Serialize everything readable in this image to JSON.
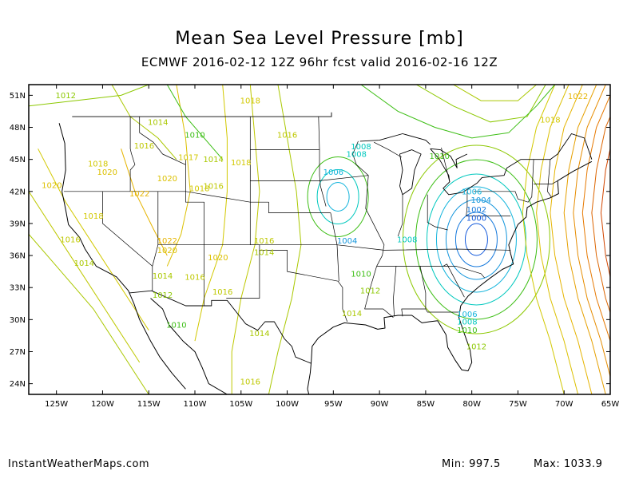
{
  "title": "Mean Sea Level Pressure [mb]",
  "subtitle": "ECMWF 2016-02-12 12Z 96hr fcst valid 2016-02-16 12Z",
  "footer": {
    "site": "InstantWeatherMaps.com",
    "min_text": "Min:  997.5",
    "max_text": "Max: 1033.9"
  },
  "map": {
    "lon_range": [
      -128,
      -65
    ],
    "lat_range": [
      23,
      52
    ],
    "lat_ticks": [
      {
        "value": 51,
        "label": "51N"
      },
      {
        "value": 48,
        "label": "48N"
      },
      {
        "value": 45,
        "label": "45N"
      },
      {
        "value": 42,
        "label": "42N"
      },
      {
        "value": 39,
        "label": "39N"
      },
      {
        "value": 36,
        "label": "36N"
      },
      {
        "value": 33,
        "label": "33N"
      },
      {
        "value": 30,
        "label": "30N"
      },
      {
        "value": 27,
        "label": "27N"
      },
      {
        "value": 24,
        "label": "24N"
      }
    ],
    "lon_ticks": [
      {
        "value": -125,
        "label": "125W"
      },
      {
        "value": -120,
        "label": "120W"
      },
      {
        "value": -115,
        "label": "115W"
      },
      {
        "value": -110,
        "label": "110W"
      },
      {
        "value": -105,
        "label": "105W"
      },
      {
        "value": -100,
        "label": "100W"
      },
      {
        "value": -95,
        "label": "95W"
      },
      {
        "value": -90,
        "label": "90W"
      },
      {
        "value": -85,
        "label": "85W"
      },
      {
        "value": -80,
        "label": "80W"
      },
      {
        "value": -75,
        "label": "75W"
      },
      {
        "value": -70,
        "label": "70W"
      },
      {
        "value": -65,
        "label": "65W"
      }
    ],
    "contour_labels": [
      {
        "text": "1012",
        "lon": -124,
        "lat": 51,
        "color": "#8cc800"
      },
      {
        "text": "1018",
        "lon": -104,
        "lat": 50.5,
        "color": "#d2c800"
      },
      {
        "text": "1022",
        "lon": -68.5,
        "lat": 50.9,
        "color": "#e6b400"
      },
      {
        "text": "1014",
        "lon": -114,
        "lat": 48.5,
        "color": "#aac800"
      },
      {
        "text": "1018",
        "lon": -71.5,
        "lat": 48.7,
        "color": "#d2c800"
      },
      {
        "text": "1010",
        "lon": -110,
        "lat": 47.3,
        "color": "#3cbe14"
      },
      {
        "text": "1016",
        "lon": -100,
        "lat": 47.3,
        "color": "#bec800"
      },
      {
        "text": "1016",
        "lon": -115.5,
        "lat": 46.3,
        "color": "#bec800"
      },
      {
        "text": "1008",
        "lon": -92,
        "lat": 46.2,
        "color": "#00c8be"
      },
      {
        "text": "1008",
        "lon": -92.5,
        "lat": 45.5,
        "color": "#00c8be"
      },
      {
        "text": "1010",
        "lon": -83.5,
        "lat": 45.3,
        "color": "#3cbe14"
      },
      {
        "text": "1017",
        "lon": -110.7,
        "lat": 45.2,
        "color": "#d2c800"
      },
      {
        "text": "1014",
        "lon": -108,
        "lat": 45,
        "color": "#aac800"
      },
      {
        "text": "1018",
        "lon": -105,
        "lat": 44.7,
        "color": "#d2c800"
      },
      {
        "text": "1018",
        "lon": -120.5,
        "lat": 44.6,
        "color": "#d2c800"
      },
      {
        "text": "1020",
        "lon": -119.5,
        "lat": 43.8,
        "color": "#dcc000"
      },
      {
        "text": "1006",
        "lon": -95,
        "lat": 43.8,
        "color": "#14b4dc"
      },
      {
        "text": "1020",
        "lon": -113,
        "lat": 43.2,
        "color": "#dcc000"
      },
      {
        "text": "1020",
        "lon": -125.5,
        "lat": 42.6,
        "color": "#dcc000"
      },
      {
        "text": "1018",
        "lon": -109.5,
        "lat": 42.3,
        "color": "#d2c800"
      },
      {
        "text": "1016",
        "lon": -108,
        "lat": 42.5,
        "color": "#bec800"
      },
      {
        "text": "1006",
        "lon": -80,
        "lat": 42,
        "color": "#14b4dc"
      },
      {
        "text": "1022",
        "lon": -116,
        "lat": 41.8,
        "color": "#e6b400"
      },
      {
        "text": "1004",
        "lon": -79,
        "lat": 41.2,
        "color": "#1496dc"
      },
      {
        "text": "1002",
        "lon": -79.5,
        "lat": 40.3,
        "color": "#1478dc"
      },
      {
        "text": "1000",
        "lon": -79.5,
        "lat": 39.5,
        "color": "#145adc"
      },
      {
        "text": "1018",
        "lon": -121,
        "lat": 39.7,
        "color": "#d2c800"
      },
      {
        "text": "1016",
        "lon": -123.5,
        "lat": 37.5,
        "color": "#bec800"
      },
      {
        "text": "1022",
        "lon": -113,
        "lat": 37.4,
        "color": "#e6b400"
      },
      {
        "text": "1016",
        "lon": -102.5,
        "lat": 37.4,
        "color": "#bec800"
      },
      {
        "text": "1004",
        "lon": -93.5,
        "lat": 37.4,
        "color": "#1496dc"
      },
      {
        "text": "1008",
        "lon": -87,
        "lat": 37.5,
        "color": "#00c8be"
      },
      {
        "text": "1020",
        "lon": -113,
        "lat": 36.5,
        "color": "#dcc000"
      },
      {
        "text": "1014",
        "lon": -102.5,
        "lat": 36.3,
        "color": "#aac800"
      },
      {
        "text": "1020",
        "lon": -107.5,
        "lat": 35.8,
        "color": "#dcc000"
      },
      {
        "text": "1014",
        "lon": -122,
        "lat": 35.3,
        "color": "#aac800"
      },
      {
        "text": "1010",
        "lon": -92,
        "lat": 34.3,
        "color": "#3cbe14"
      },
      {
        "text": "1014",
        "lon": -113.5,
        "lat": 34.1,
        "color": "#aac800"
      },
      {
        "text": "1016",
        "lon": -110,
        "lat": 34,
        "color": "#bec800"
      },
      {
        "text": "1012",
        "lon": -91,
        "lat": 32.7,
        "color": "#8cc800"
      },
      {
        "text": "1016",
        "lon": -107,
        "lat": 32.6,
        "color": "#bec800"
      },
      {
        "text": "1012",
        "lon": -113.5,
        "lat": 32.3,
        "color": "#8cc800"
      },
      {
        "text": "1014",
        "lon": -93,
        "lat": 30.6,
        "color": "#aac800"
      },
      {
        "text": "1006",
        "lon": -80.5,
        "lat": 30.5,
        "color": "#14b4dc"
      },
      {
        "text": "1008",
        "lon": -80.5,
        "lat": 29.8,
        "color": "#00c8be"
      },
      {
        "text": "1010",
        "lon": -80.5,
        "lat": 29,
        "color": "#3cbe14"
      },
      {
        "text": "1010",
        "lon": -112,
        "lat": 29.5,
        "color": "#3cbe14"
      },
      {
        "text": "1014",
        "lon": -103,
        "lat": 28.7,
        "color": "#aac800"
      },
      {
        "text": "1012",
        "lon": -79.5,
        "lat": 27.5,
        "color": "#8cc800"
      },
      {
        "text": "1016",
        "lon": -104,
        "lat": 24.2,
        "color": "#bec800"
      }
    ]
  }
}
